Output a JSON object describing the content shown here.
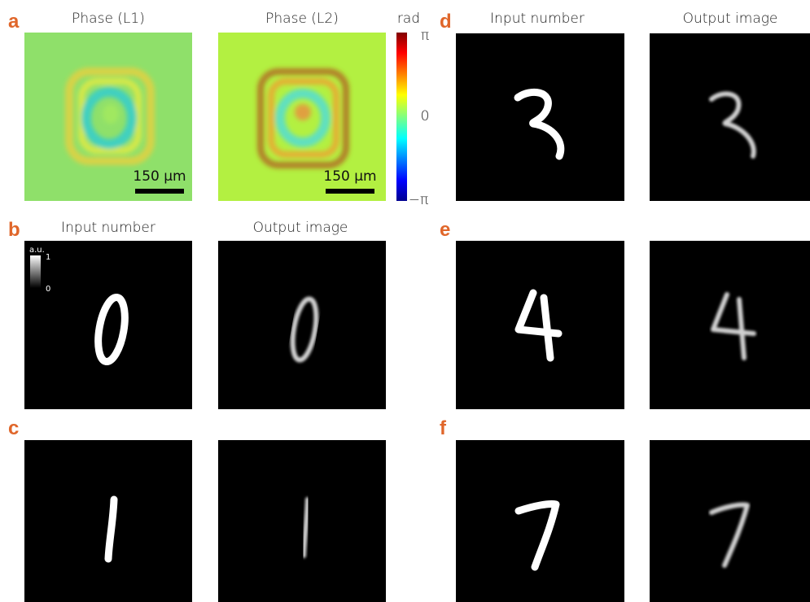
{
  "panel_a": {
    "label": "a",
    "titles": [
      "Phase (L1)",
      "Phase (L2)"
    ],
    "scale_bar_labels": [
      "150 µm",
      "150 µm"
    ]
  },
  "colorbar": {
    "unit": "rad",
    "ticks": [
      "π",
      "0",
      "−π"
    ]
  },
  "panel_b": {
    "label": "b",
    "titles": [
      "Input number",
      "Output image"
    ]
  },
  "intensity_bar": {
    "unit": "a.u.",
    "ticks": [
      "1",
      "0"
    ]
  },
  "panel_c": {
    "label": "c"
  },
  "panel_d": {
    "label": "d",
    "titles": [
      "Input number",
      "Output image"
    ]
  },
  "panel_e": {
    "label": "e"
  },
  "panel_f": {
    "label": "f"
  }
}
